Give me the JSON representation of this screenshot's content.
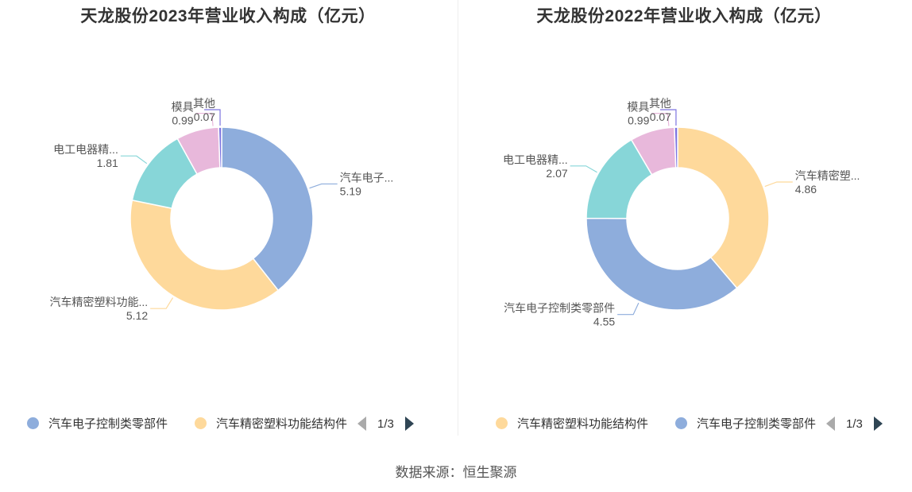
{
  "source": "数据来源：恒生聚源",
  "chart_data": [
    {
      "type": "pie",
      "title": "天龙股份2023年营业收入构成（亿元）",
      "slices": [
        {
          "name": "汽车电子控制类零部件",
          "label": "汽车电子...",
          "value": 5.19,
          "value_text": "5.19",
          "color": "#8eaddc"
        },
        {
          "name": "汽车精密塑料功能结构件",
          "label": "汽车精密塑料功能...",
          "value": 5.12,
          "value_text": "5.12",
          "color": "#fed99b"
        },
        {
          "name": "电工电器精密部件",
          "label": "电工电器精...",
          "value": 1.81,
          "value_text": "1.81",
          "color": "#87d6d8"
        },
        {
          "name": "模具",
          "label": "模具",
          "value": 0.99,
          "value_text": "0.99",
          "color": "#e8b8db"
        },
        {
          "name": "其他",
          "label": "其他",
          "value": 0.07,
          "value_text": "0.07",
          "color": "#7d74e0"
        }
      ],
      "legend": {
        "items": [
          {
            "name": "汽车电子控制类零部件",
            "color": "#8eaddc"
          },
          {
            "name": "汽车精密塑料功能结构件",
            "color": "#fed99b"
          }
        ],
        "page": "1/3"
      }
    },
    {
      "type": "pie",
      "title": "天龙股份2022年营业收入构成（亿元）",
      "slices": [
        {
          "name": "汽车精密塑料功能结构件",
          "label": "汽车精密塑...",
          "value": 4.86,
          "value_text": "4.86",
          "color": "#fed99b"
        },
        {
          "name": "汽车电子控制类零部件",
          "label": "汽车电子控制类零部件",
          "value": 4.55,
          "value_text": "4.55",
          "color": "#8eaddc"
        },
        {
          "name": "电工电器精密部件",
          "label": "电工电器精...",
          "value": 2.07,
          "value_text": "2.07",
          "color": "#87d6d8"
        },
        {
          "name": "模具",
          "label": "模具",
          "value": 0.99,
          "value_text": "0.99",
          "color": "#e8b8db"
        },
        {
          "name": "其他",
          "label": "其他",
          "value": 0.07,
          "value_text": "0.07",
          "color": "#7d74e0"
        }
      ],
      "legend": {
        "items": [
          {
            "name": "汽车精密塑料功能结构件",
            "color": "#fed99b"
          },
          {
            "name": "汽车电子控制类零部件",
            "color": "#8eaddc"
          }
        ],
        "page": "1/3"
      }
    }
  ]
}
